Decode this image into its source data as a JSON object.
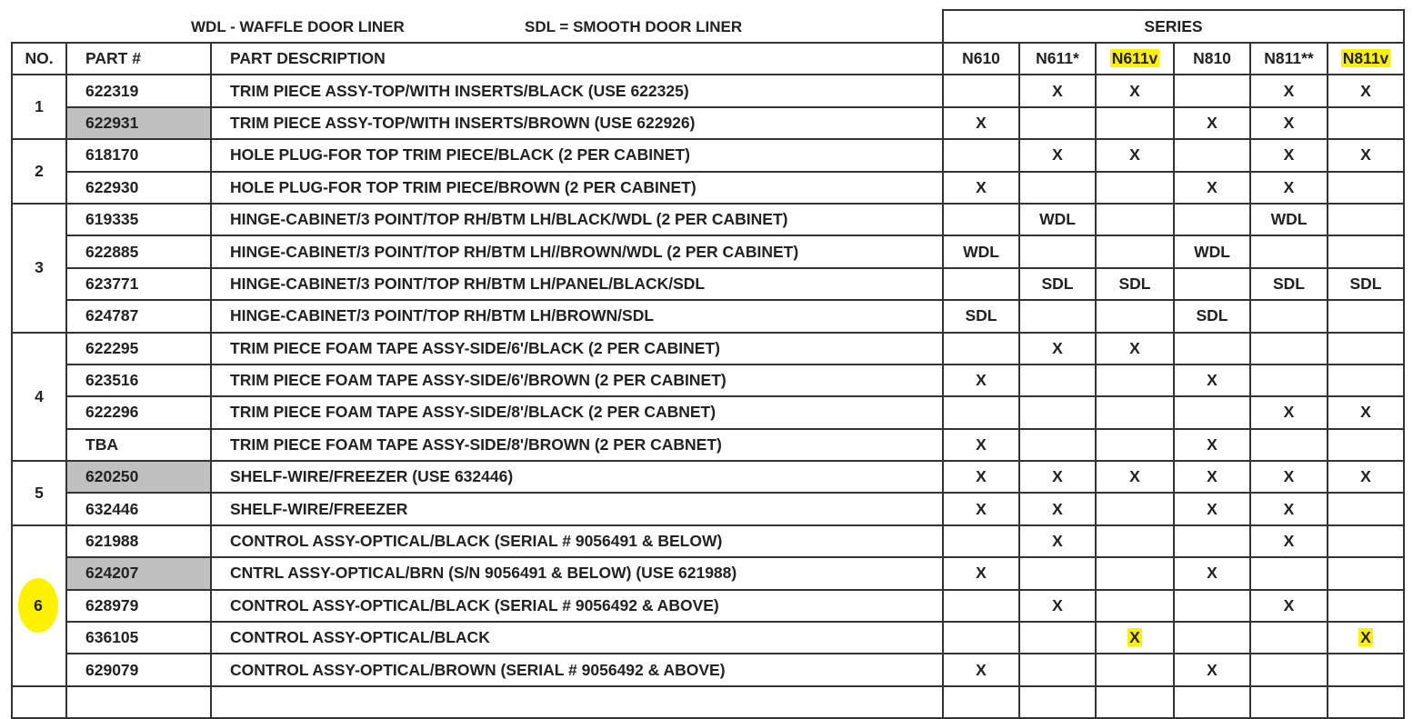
{
  "legend": {
    "wdl": "WDL - WAFFLE DOOR LINER",
    "sdl": "SDL = SMOOTH DOOR LINER"
  },
  "header": {
    "series_label": "SERIES",
    "no": "NO.",
    "part": "PART #",
    "description": "PART DESCRIPTION",
    "series": [
      {
        "label": "N610",
        "highlight": false
      },
      {
        "label": "N611*",
        "highlight": false
      },
      {
        "label": "N611v",
        "highlight": true
      },
      {
        "label": "N810",
        "highlight": false
      },
      {
        "label": "N811**",
        "highlight": false
      },
      {
        "label": "N811v",
        "highlight": true
      }
    ]
  },
  "highlight_color": "#fff200",
  "grey_color": "#c0c0c0",
  "groups": [
    {
      "no": "1",
      "rows": [
        {
          "part": "622319",
          "desc": "TRIM PIECE ASSY-TOP/WITH INSERTS/BLACK (USE 622325)",
          "cells": [
            "",
            "X",
            "X",
            "",
            "X",
            "X"
          ]
        },
        {
          "part": "622931",
          "grey": true,
          "desc": "TRIM PIECE ASSY-TOP/WITH INSERTS/BROWN (USE 622926)",
          "cells": [
            "X",
            "",
            "",
            "X",
            "X",
            ""
          ]
        }
      ]
    },
    {
      "no": "2",
      "rows": [
        {
          "part": "618170",
          "desc": "HOLE PLUG-FOR TOP TRIM PIECE/BLACK (2 PER CABINET)",
          "cells": [
            "",
            "X",
            "X",
            "",
            "X",
            "X"
          ]
        },
        {
          "part": "622930",
          "desc": "HOLE PLUG-FOR TOP TRIM PIECE/BROWN (2 PER CABINET)",
          "cells": [
            "X",
            "",
            "",
            "X",
            "X",
            ""
          ]
        }
      ]
    },
    {
      "no": "3",
      "rows": [
        {
          "part": "619335",
          "desc": "HINGE-CABINET/3 POINT/TOP RH/BTM LH/BLACK/WDL (2 PER CABINET)",
          "cells": [
            "",
            "WDL",
            "",
            "",
            "WDL",
            ""
          ]
        },
        {
          "part": "622885",
          "desc": "HINGE-CABINET/3 POINT/TOP RH/BTM LH//BROWN/WDL (2 PER CABINET)",
          "cells": [
            "WDL",
            "",
            "",
            "WDL",
            "",
            ""
          ]
        },
        {
          "part": "623771",
          "desc": "HINGE-CABINET/3 POINT/TOP RH/BTM LH/PANEL/BLACK/SDL",
          "cells": [
            "",
            "SDL",
            "SDL",
            "",
            "SDL",
            "SDL"
          ]
        },
        {
          "part": "624787",
          "desc": "HINGE-CABINET/3 POINT/TOP RH/BTM LH/BROWN/SDL",
          "cells": [
            "SDL",
            "",
            "",
            "SDL",
            "",
            ""
          ]
        }
      ]
    },
    {
      "no": "4",
      "rows": [
        {
          "part": "622295",
          "desc": "TRIM PIECE FOAM TAPE ASSY-SIDE/6'/BLACK (2 PER CABINET)",
          "cells": [
            "",
            "X",
            "X",
            "",
            "",
            ""
          ]
        },
        {
          "part": "623516",
          "desc": "TRIM PIECE FOAM TAPE ASSY-SIDE/6'/BROWN  (2 PER CABINET)",
          "cells": [
            "X",
            "",
            "",
            "X",
            "",
            ""
          ]
        },
        {
          "part": "622296",
          "desc": "TRIM PIECE FOAM TAPE ASSY-SIDE/8'/BLACK (2 PER CABNET)",
          "cells": [
            "",
            "",
            "",
            "",
            "X",
            "X"
          ]
        },
        {
          "part": "TBA",
          "desc": "TRIM PIECE FOAM TAPE ASSY-SIDE/8'/BROWN (2 PER CABNET)",
          "cells": [
            "X",
            "",
            "",
            "X",
            "",
            ""
          ]
        }
      ]
    },
    {
      "no": "5",
      "rows": [
        {
          "part": "620250",
          "grey": true,
          "desc": "SHELF-WIRE/FREEZER (USE 632446)",
          "cells": [
            "X",
            "X",
            "X",
            "X",
            "X",
            "X"
          ]
        },
        {
          "part": "632446",
          "desc": "SHELF-WIRE/FREEZER",
          "cells": [
            "X",
            "X",
            "",
            "X",
            "X",
            ""
          ]
        }
      ]
    },
    {
      "no": "6",
      "circled": true,
      "rows": [
        {
          "part": "621988",
          "desc": "CONTROL ASSY-OPTICAL/BLACK (SERIAL # 9056491 & BELOW)",
          "cells": [
            "",
            "X",
            "",
            "",
            "X",
            ""
          ]
        },
        {
          "part": "624207",
          "grey": true,
          "desc": "CNTRL ASSY-OPTICAL/BRN (S/N 9056491 & BELOW) (USE 621988)",
          "cells": [
            "X",
            "",
            "",
            "X",
            "",
            ""
          ]
        },
        {
          "part": "628979",
          "desc": "CONTROL ASSY-OPTICAL/BLACK (SERIAL # 9056492 & ABOVE)",
          "cells": [
            "",
            "X",
            "",
            "",
            "X",
            ""
          ]
        },
        {
          "part": "636105",
          "desc": "CONTROL ASSY-OPTICAL/BLACK",
          "cells": [
            "",
            "",
            "X",
            "",
            "",
            "X"
          ],
          "highlighted_cells": [
            2,
            5
          ]
        },
        {
          "part": "629079",
          "desc": "CONTROL ASSY-OPTICAL/BROWN (SERIAL # 9056492 & ABOVE)",
          "cells": [
            "X",
            "",
            "",
            "X",
            "",
            ""
          ]
        }
      ]
    }
  ]
}
